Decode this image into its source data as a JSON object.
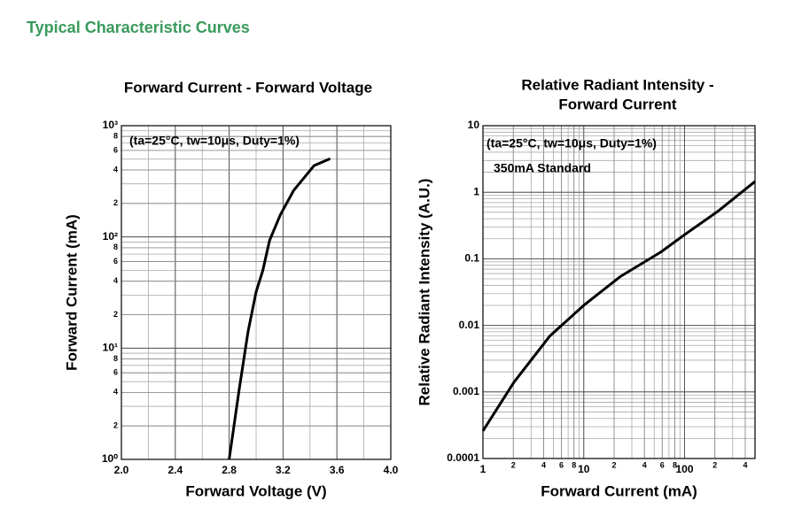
{
  "heading": "Typical Characteristic Curves",
  "chart_data": [
    {
      "type": "line",
      "title": [
        "Forward Current - Forward Voltage"
      ],
      "x_label": "Forward Voltage (V)",
      "y_label": "Forward Current (mA)",
      "annotations": [
        "(ta=25°C, tw=10μs, Duty=1%)"
      ],
      "x": [
        2.8,
        2.875,
        2.94,
        3.0,
        3.05,
        3.1,
        3.18,
        3.28,
        3.43,
        3.55
      ],
      "values": [
        1,
        4.3,
        14,
        32,
        50,
        93,
        158,
        263,
        437,
        505
      ],
      "color": "#000000",
      "xlim": [
        2.0,
        4.0
      ],
      "xticks": [
        {
          "value": 2.0,
          "label": "2.0"
        },
        2.4,
        2.8,
        3.2,
        3.6,
        {
          "value": 4.0,
          "label": "4.0"
        }
      ],
      "ylim": [
        1,
        1000
      ],
      "ylog": true,
      "yticks": [
        {
          "value": 1,
          "label": "10⁰"
        },
        2,
        4,
        6,
        8,
        {
          "value": 10,
          "label": "10¹"
        },
        {
          "value": 20,
          "label": "2"
        },
        {
          "value": 40,
          "label": "4"
        },
        {
          "value": 60,
          "label": "6"
        },
        {
          "value": 80,
          "label": "8"
        },
        {
          "value": 100,
          "label": "10²"
        },
        {
          "value": 200,
          "label": "2"
        },
        {
          "value": 400,
          "label": "4"
        },
        {
          "value": 600,
          "label": "6"
        },
        {
          "value": 800,
          "label": "8"
        },
        {
          "value": 1000,
          "label": "10³"
        }
      ],
      "grid": true
    },
    {
      "type": "line",
      "title": [
        "Relative Radiant Intensity -",
        "Forward Current"
      ],
      "x_label": "Forward Current (mA)",
      "y_label": "Relative Radiant Intensity (A.U.)",
      "annotations": [
        "(ta=25°C, tw=10μs, Duty=1%)",
        "350mA Standard"
      ],
      "x": [
        1,
        2.03,
        4.6,
        10,
        23,
        58,
        100,
        215,
        500
      ],
      "values": [
        0.00026,
        0.0014,
        0.0069,
        0.02,
        0.054,
        0.126,
        0.23,
        0.52,
        1.45
      ],
      "color": "#000000",
      "xlim": [
        1,
        500
      ],
      "xlog": true,
      "xticks": [
        1,
        2,
        4,
        6,
        8,
        10,
        {
          "value": 20,
          "label": "2"
        },
        {
          "value": 40,
          "label": "4"
        },
        {
          "value": 60,
          "label": "6"
        },
        {
          "value": 80,
          "label": "8"
        },
        100,
        {
          "value": 200,
          "label": "2"
        },
        {
          "value": 400,
          "label": "4"
        }
      ],
      "ylim": [
        0.0001,
        10
      ],
      "ylog": true,
      "yticks": [
        0.0001,
        0.001,
        0.01,
        0.1,
        1,
        10
      ],
      "grid": true
    }
  ]
}
